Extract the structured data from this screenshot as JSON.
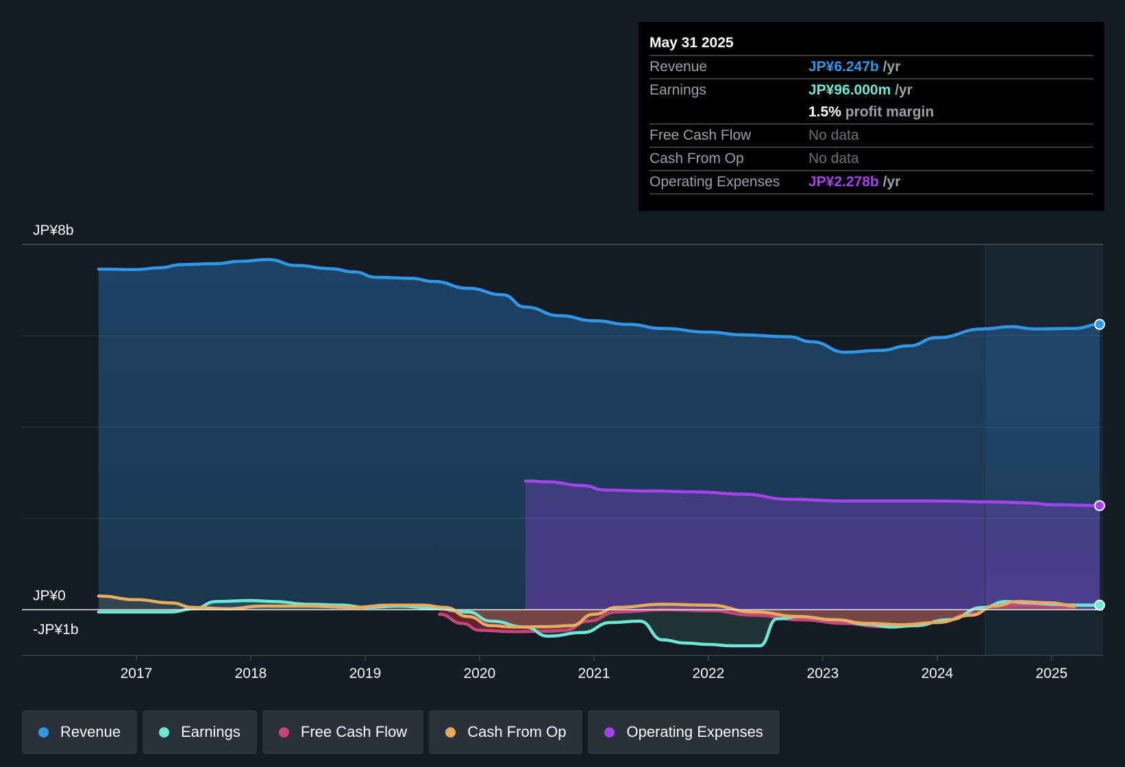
{
  "colors": {
    "revenue": "#2e97e8",
    "earnings": "#6ee8d6",
    "fcf": "#c7447c",
    "cfo": "#e9ab5c",
    "opex": "#a442ef",
    "background": "#151b24"
  },
  "tooltip": {
    "date": "May 31 2025",
    "revenue_label": "Revenue",
    "revenue_value": "JP¥6.247b",
    "revenue_unit": "/yr",
    "earnings_label": "Earnings",
    "earnings_value": "JP¥96.000m",
    "earnings_unit": "/yr",
    "margin_value": "1.5%",
    "margin_label": "profit margin",
    "fcf_label": "Free Cash Flow",
    "fcf_value": "No data",
    "cfo_label": "Cash From Op",
    "cfo_value": "No data",
    "opex_label": "Operating Expenses",
    "opex_value": "JP¥2.278b",
    "opex_unit": "/yr"
  },
  "legend": {
    "revenue": "Revenue",
    "earnings": "Earnings",
    "fcf": "Free Cash Flow",
    "cfo": "Cash From Op",
    "opex": "Operating Expenses"
  },
  "chart_data": {
    "type": "line",
    "title": "",
    "xlabel": "",
    "ylabel": "",
    "ylim": [
      -1,
      8
    ],
    "xlim": [
      2016.0,
      2025.45
    ],
    "y_tick_labels": [
      {
        "value": 8,
        "label": "JP¥8b"
      },
      {
        "value": 0,
        "label": "JP¥0"
      },
      {
        "value": -1,
        "label": "-JP¥1b"
      }
    ],
    "x_ticks": [
      "2017",
      "2018",
      "2019",
      "2020",
      "2021",
      "2022",
      "2023",
      "2024",
      "2025"
    ],
    "forecast_start": 2024.42,
    "series": [
      {
        "name": "Revenue",
        "key": "revenue",
        "color": "#2e97e8",
        "fill": true,
        "x": [
          2016.67,
          2017.0,
          2017.2,
          2017.4,
          2017.7,
          2017.9,
          2018.15,
          2018.4,
          2018.7,
          2018.9,
          2019.1,
          2019.4,
          2019.6,
          2019.9,
          2020.2,
          2020.4,
          2020.7,
          2021.0,
          2021.3,
          2021.6,
          2022.0,
          2022.3,
          2022.7,
          2022.9,
          2023.2,
          2023.5,
          2023.75,
          2024.0,
          2024.4,
          2024.65,
          2024.85,
          2025.2,
          2025.42
        ],
        "y": [
          7.46,
          7.45,
          7.49,
          7.56,
          7.58,
          7.63,
          7.67,
          7.54,
          7.47,
          7.4,
          7.28,
          7.26,
          7.19,
          7.04,
          6.9,
          6.63,
          6.44,
          6.33,
          6.25,
          6.16,
          6.08,
          6.02,
          5.98,
          5.87,
          5.64,
          5.68,
          5.78,
          5.96,
          6.15,
          6.2,
          6.15,
          6.16,
          6.25
        ]
      },
      {
        "name": "Earnings",
        "key": "earnings",
        "color": "#6ee8d6",
        "fill": true,
        "x": [
          2016.67,
          2017.0,
          2017.3,
          2017.5,
          2017.7,
          2018.0,
          2018.2,
          2018.5,
          2018.8,
          2019.0,
          2019.3,
          2019.6,
          2019.9,
          2020.1,
          2020.4,
          2020.6,
          2020.9,
          2021.15,
          2021.4,
          2021.6,
          2021.8,
          2022.0,
          2022.2,
          2022.45,
          2022.6,
          2022.8,
          2023.1,
          2023.4,
          2023.6,
          2023.8,
          2024.1,
          2024.4,
          2024.6,
          2024.8,
          2025.0,
          2025.2,
          2025.42
        ],
        "y": [
          -0.05,
          -0.05,
          -0.05,
          0.02,
          0.18,
          0.2,
          0.18,
          0.12,
          0.1,
          0.05,
          0.08,
          0.03,
          -0.05,
          -0.25,
          -0.38,
          -0.58,
          -0.5,
          -0.28,
          -0.25,
          -0.66,
          -0.73,
          -0.76,
          -0.79,
          -0.79,
          -0.2,
          -0.15,
          -0.22,
          -0.32,
          -0.38,
          -0.35,
          -0.22,
          0.05,
          0.18,
          0.15,
          0.12,
          0.1,
          0.1
        ]
      },
      {
        "name": "Free Cash Flow",
        "key": "fcf",
        "color": "#c7447c",
        "fill": true,
        "x": [
          2019.65,
          2019.85,
          2020.0,
          2020.3,
          2020.6,
          2020.75,
          2020.95,
          2021.2,
          2021.6,
          2022.0,
          2022.4,
          2022.8,
          2023.2,
          2023.5,
          2023.8,
          2024.05,
          2024.3,
          2024.5,
          2024.7,
          2024.9,
          2025.2
        ],
        "y": [
          -0.1,
          -0.3,
          -0.45,
          -0.48,
          -0.47,
          -0.45,
          -0.25,
          -0.05,
          0.0,
          -0.02,
          -0.12,
          -0.22,
          -0.3,
          -0.37,
          -0.35,
          -0.25,
          -0.08,
          0.08,
          0.1,
          0.08,
          0.05
        ]
      },
      {
        "name": "Cash From Op",
        "key": "cfo",
        "color": "#e9ab5c",
        "fill": true,
        "x": [
          2016.67,
          2017.0,
          2017.3,
          2017.5,
          2017.8,
          2018.1,
          2018.5,
          2018.9,
          2019.2,
          2019.5,
          2019.7,
          2019.9,
          2020.1,
          2020.3,
          2020.6,
          2020.8,
          2021.0,
          2021.2,
          2021.6,
          2022.0,
          2022.4,
          2022.8,
          2023.1,
          2023.4,
          2023.7,
          2024.0,
          2024.3,
          2024.5,
          2024.7,
          2025.0,
          2025.2
        ],
        "y": [
          0.3,
          0.22,
          0.15,
          0.05,
          0.02,
          0.08,
          0.08,
          0.05,
          0.1,
          0.1,
          0.05,
          -0.15,
          -0.35,
          -0.38,
          -0.37,
          -0.35,
          -0.1,
          0.05,
          0.12,
          0.1,
          -0.05,
          -0.15,
          -0.22,
          -0.3,
          -0.33,
          -0.28,
          -0.12,
          0.08,
          0.18,
          0.15,
          0.08
        ]
      },
      {
        "name": "Operating Expenses",
        "key": "opex",
        "color": "#a442ef",
        "fill": true,
        "x": [
          2020.4,
          2020.6,
          2020.9,
          2021.1,
          2021.5,
          2021.9,
          2022.3,
          2022.7,
          2023.2,
          2023.7,
          2024.0,
          2024.5,
          2024.8,
          2025.0,
          2025.42
        ],
        "y": [
          2.82,
          2.8,
          2.72,
          2.62,
          2.6,
          2.58,
          2.53,
          2.42,
          2.38,
          2.38,
          2.38,
          2.36,
          2.34,
          2.3,
          2.28
        ]
      }
    ]
  }
}
